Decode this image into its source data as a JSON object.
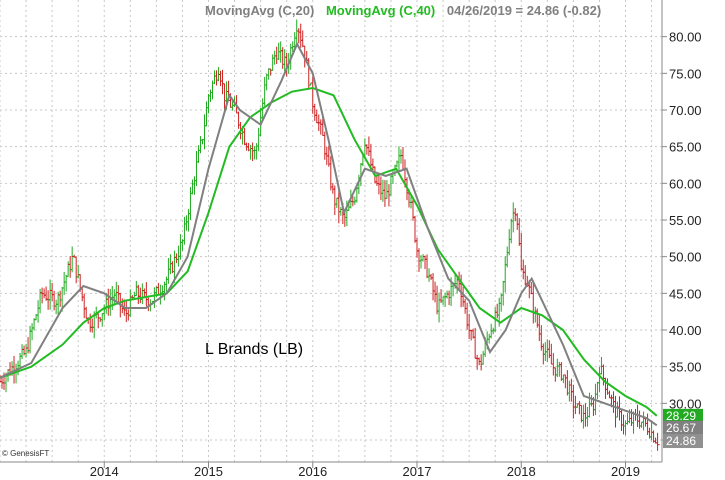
{
  "header": {
    "ma20_label": "MovingAvg (C,20)",
    "ma40_label": "MovingAvg (C,40)",
    "quote": "04/26/2019 = 24.86 (-0.82)"
  },
  "credit": "© GenesisFT",
  "colors": {
    "up": "#22aa22",
    "down": "#cc2222",
    "ma20": "#808080",
    "ma40": "#22bb22",
    "grid": "#c8c8c8",
    "badge_ma40": "#22aa22",
    "badge_ma20": "#808080",
    "badge_price": "#909090"
  },
  "chart_data": {
    "type": "line",
    "title": "L Brands (LB)",
    "price_type": "weekly OHLC bars",
    "ylim": [
      22,
      85
    ],
    "yticks": [
      25,
      30,
      35,
      40,
      45,
      50,
      55,
      60,
      65,
      70,
      75,
      80
    ],
    "ytick_labels": [
      "25.00",
      "30.00",
      "35.00",
      "40.00",
      "45.00",
      "50.00",
      "55.00",
      "60.00",
      "65.00",
      "70.00",
      "75.00",
      "80.00"
    ],
    "xlim": [
      2013.0,
      2019.35
    ],
    "xticks": [
      2014,
      2015,
      2016,
      2017,
      2018,
      2019
    ],
    "xtick_labels": [
      "2014",
      "2015",
      "2016",
      "2017",
      "2018",
      "2019"
    ],
    "grid": true,
    "price_path": [
      [
        2013.0,
        33
      ],
      [
        2013.25,
        37
      ],
      [
        2013.4,
        45
      ],
      [
        2013.55,
        44
      ],
      [
        2013.7,
        50
      ],
      [
        2013.78,
        45
      ],
      [
        2013.85,
        41
      ],
      [
        2013.95,
        42
      ],
      [
        2014.1,
        45
      ],
      [
        2014.2,
        42
      ],
      [
        2014.3,
        45
      ],
      [
        2014.45,
        44
      ],
      [
        2014.6,
        47
      ],
      [
        2014.75,
        52
      ],
      [
        2014.85,
        60
      ],
      [
        2014.95,
        67
      ],
      [
        2015.0,
        72
      ],
      [
        2015.1,
        76
      ],
      [
        2015.15,
        72
      ],
      [
        2015.25,
        70
      ],
      [
        2015.35,
        66
      ],
      [
        2015.45,
        64
      ],
      [
        2015.55,
        74
      ],
      [
        2015.65,
        78
      ],
      [
        2015.75,
        76
      ],
      [
        2015.85,
        82
      ],
      [
        2015.92,
        78
      ],
      [
        2016.0,
        71
      ],
      [
        2016.1,
        66
      ],
      [
        2016.2,
        58
      ],
      [
        2016.3,
        55
      ],
      [
        2016.4,
        58
      ],
      [
        2016.5,
        66
      ],
      [
        2016.6,
        60
      ],
      [
        2016.7,
        58
      ],
      [
        2016.8,
        62
      ],
      [
        2016.85,
        64
      ],
      [
        2016.95,
        56
      ],
      [
        2017.0,
        51
      ],
      [
        2017.1,
        48
      ],
      [
        2017.2,
        43
      ],
      [
        2017.3,
        45
      ],
      [
        2017.4,
        47
      ],
      [
        2017.5,
        40
      ],
      [
        2017.6,
        35
      ],
      [
        2017.7,
        40
      ],
      [
        2017.8,
        43
      ],
      [
        2017.9,
        55
      ],
      [
        2017.95,
        57
      ],
      [
        2018.0,
        48
      ],
      [
        2018.05,
        47
      ],
      [
        2018.1,
        44
      ],
      [
        2018.2,
        38
      ],
      [
        2018.3,
        35
      ],
      [
        2018.4,
        34
      ],
      [
        2018.5,
        30
      ],
      [
        2018.6,
        28
      ],
      [
        2018.7,
        30
      ],
      [
        2018.75,
        35
      ],
      [
        2018.8,
        33
      ],
      [
        2018.9,
        29
      ],
      [
        2019.0,
        27
      ],
      [
        2019.1,
        28
      ],
      [
        2019.2,
        27
      ],
      [
        2019.3,
        25
      ]
    ],
    "series": [
      {
        "name": "MovingAvg (C,20)",
        "x": [
          2013.0,
          2013.3,
          2013.6,
          2013.8,
          2014.0,
          2014.2,
          2014.4,
          2014.6,
          2014.8,
          2015.0,
          2015.2,
          2015.3,
          2015.5,
          2015.7,
          2015.85,
          2016.0,
          2016.15,
          2016.3,
          2016.5,
          2016.7,
          2016.9,
          2017.1,
          2017.3,
          2017.5,
          2017.7,
          2017.85,
          2018.0,
          2018.1,
          2018.2,
          2018.4,
          2018.6,
          2018.8,
          2019.0,
          2019.2,
          2019.3
        ],
        "values": [
          33.5,
          35.5,
          43,
          46,
          45,
          43,
          43,
          45,
          50,
          62,
          72,
          70,
          68,
          74,
          79,
          75,
          66,
          56,
          62,
          61,
          62,
          54,
          47,
          44,
          37,
          40,
          45,
          47,
          44,
          38,
          31,
          30,
          29,
          28,
          27
        ]
      },
      {
        "name": "MovingAvg (C,40)",
        "x": [
          2013.0,
          2013.3,
          2013.6,
          2013.8,
          2014.0,
          2014.2,
          2014.4,
          2014.6,
          2014.8,
          2015.0,
          2015.2,
          2015.4,
          2015.6,
          2015.8,
          2016.0,
          2016.2,
          2016.4,
          2016.6,
          2016.8,
          2017.0,
          2017.2,
          2017.4,
          2017.6,
          2017.8,
          2017.9,
          2018.0,
          2018.2,
          2018.4,
          2018.6,
          2018.8,
          2019.0,
          2019.2,
          2019.3
        ],
        "values": [
          33.5,
          35,
          38,
          41,
          43,
          44,
          44.5,
          45,
          48,
          56,
          65,
          69,
          71,
          72.5,
          73,
          72,
          66,
          61,
          62,
          57,
          51,
          47,
          43,
          41,
          42,
          43,
          42,
          40,
          36,
          33,
          31,
          29.5,
          28.3
        ]
      }
    ],
    "last_values": {
      "ma40": "28.29",
      "ma20": "26.67",
      "close": "24.86"
    }
  }
}
